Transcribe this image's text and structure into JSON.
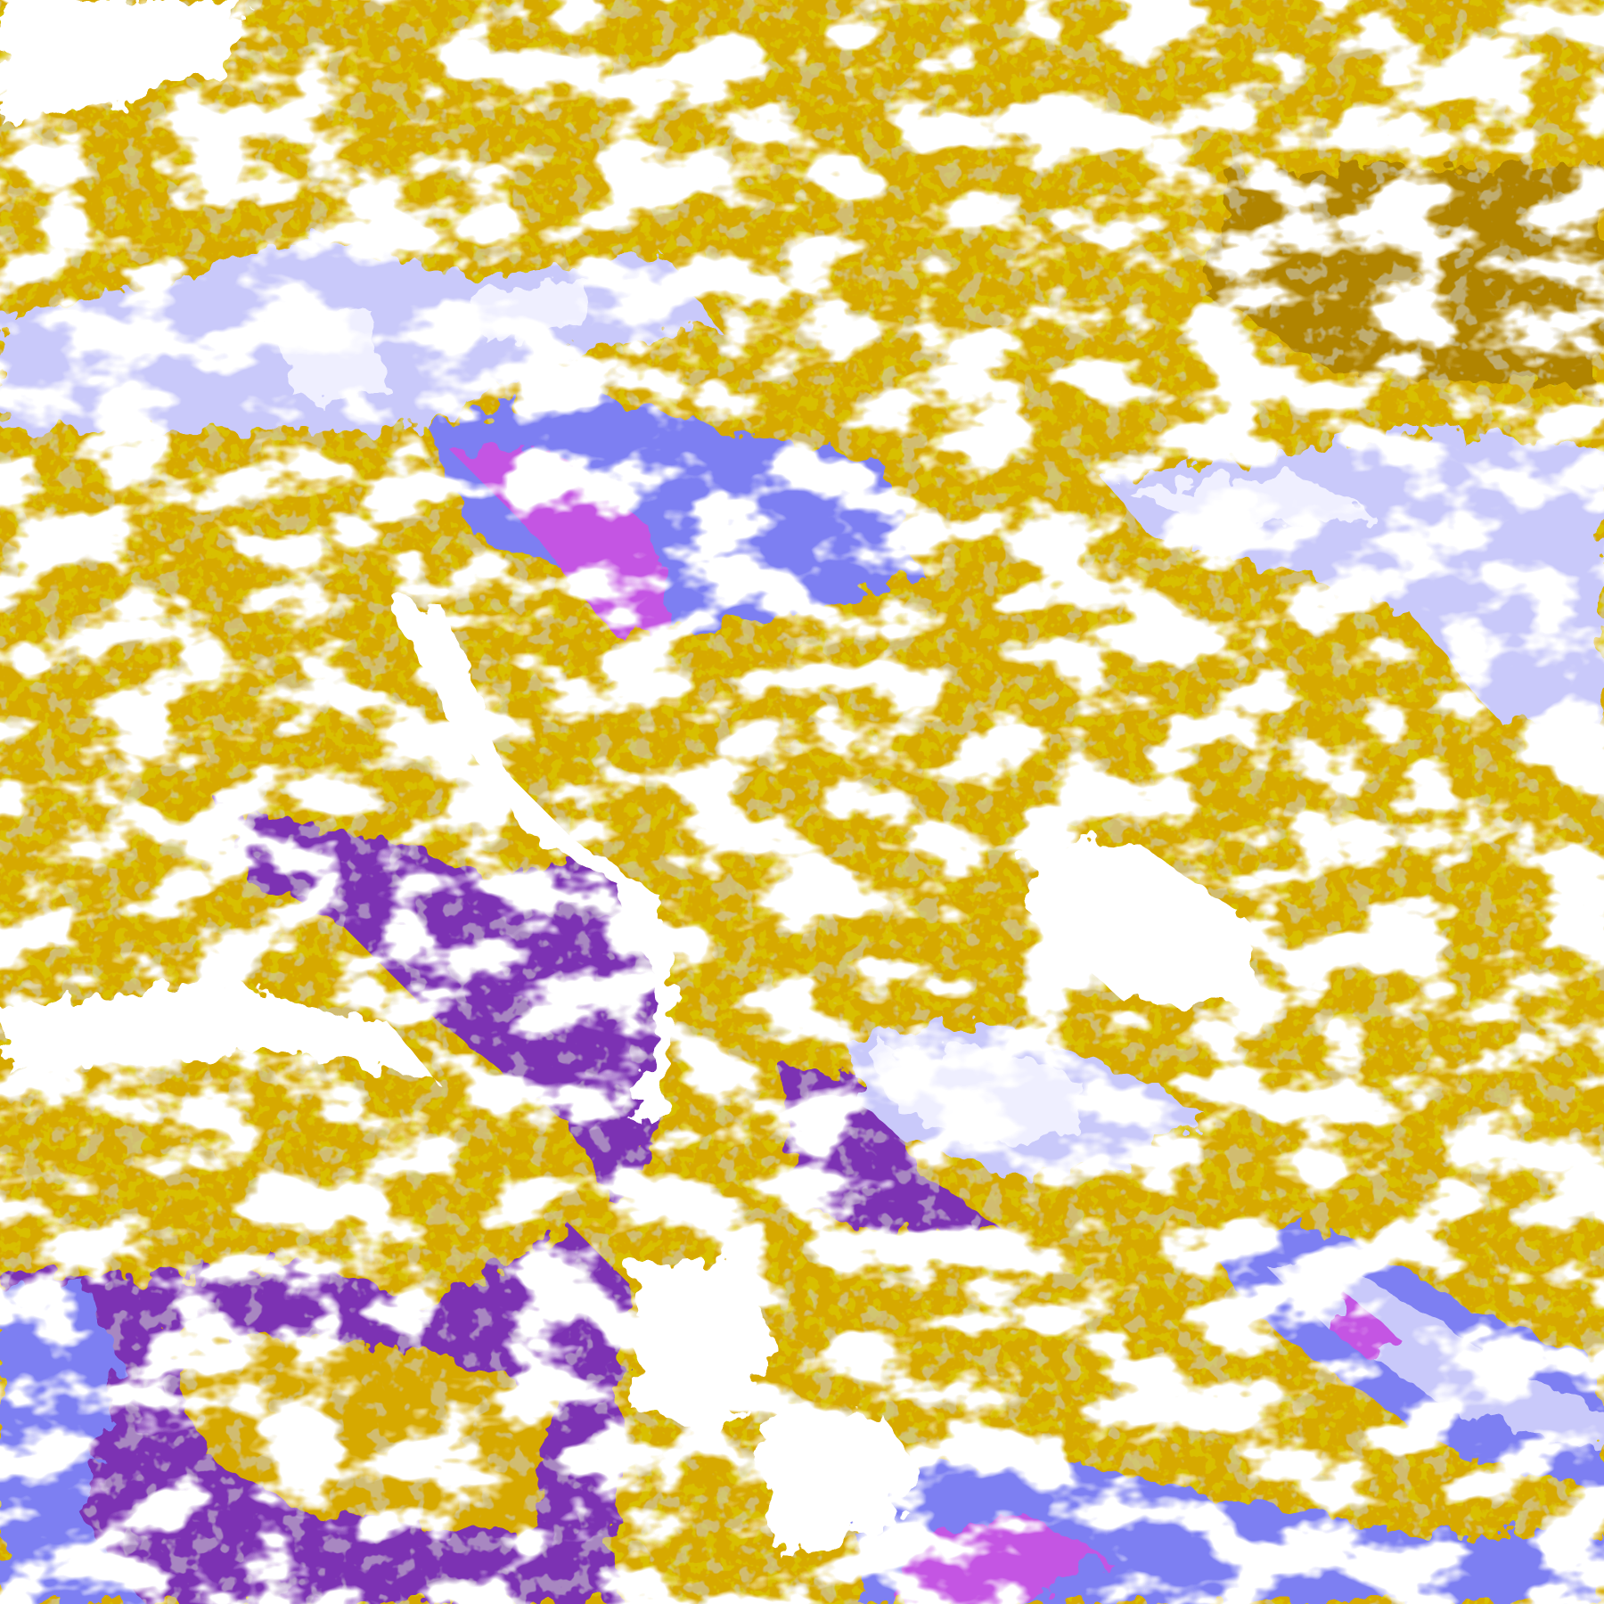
{
  "image": {
    "kind": "false-color satellite cloud classification",
    "colors": {
      "clear": "#ffffff",
      "gold": "#d6a900",
      "dark_gold": "#b08400",
      "purple": "#7b33b3",
      "magenta": "#c455e3",
      "violet_blue": "#7d7ff2",
      "lavender": "#c9c9fa",
      "pale_lavender": "#efefff",
      "gray": "#9c9c9c"
    }
  }
}
